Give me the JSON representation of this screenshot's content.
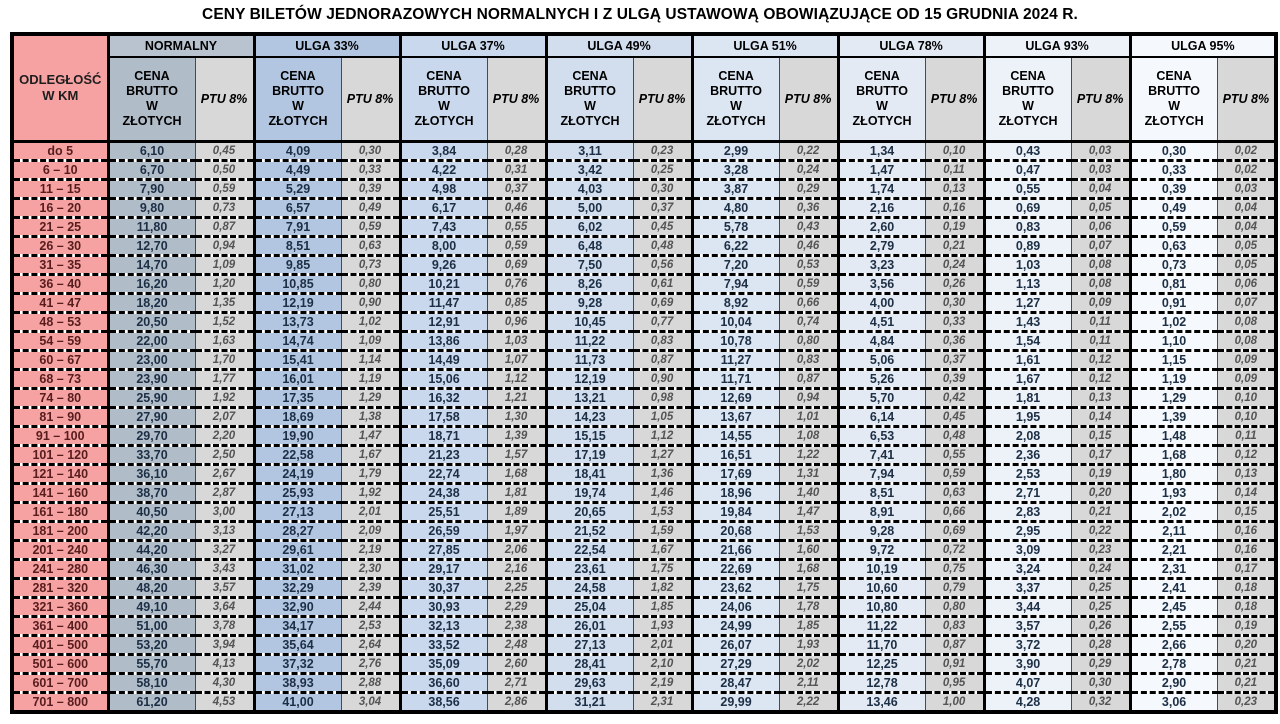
{
  "title": "CENY BILETÓW JEDNORAZOWYCH NORMALNYCH I Z ULGĄ USTAWOWĄ OBOWIĄZUJĄCE OD 15 GRUDNIA 2024 R.",
  "colors": {
    "distance_bg": "#f6a2a2",
    "ptu_bg": "#d8d8d8",
    "border": "#000000",
    "price_text": "#1c2f45",
    "ptu_text": "#545454",
    "distance_text": "#571c1c"
  },
  "table": {
    "distance_header": "ODLEGŁOŚĆ\nW KM",
    "price_header": "CENA\nBRUTTO\nW\nZŁOTYCH",
    "ptu_header": "PTU 8%",
    "groups": [
      {
        "id": "normalny",
        "label": "NORMALNY",
        "color": "#b1bcc9",
        "header_color": "#b9c3cf"
      },
      {
        "id": "ulga-33",
        "label": "ULGA 33%",
        "color": "#b2c6e2",
        "header_color": "#b2c6e2"
      },
      {
        "id": "ulga-37",
        "label": "ULGA 37%",
        "color": "#c9d8ec",
        "header_color": "#c9d8ec"
      },
      {
        "id": "ulga-49",
        "label": "ULGA 49%",
        "color": "#d2deee",
        "header_color": "#d2deee"
      },
      {
        "id": "ulga-51",
        "label": "ULGA 51%",
        "color": "#dce5f2",
        "header_color": "#dce5f2"
      },
      {
        "id": "ulga-78",
        "label": "ULGA 78%",
        "color": "#e4eaf4",
        "header_color": "#e4eaf4"
      },
      {
        "id": "ulga-93",
        "label": "ULGA 93%",
        "color": "#edf1f8",
        "header_color": "#edf1f8"
      },
      {
        "id": "ulga-95",
        "label": "ULGA 95%",
        "color": "#f5f8fc",
        "header_color": "#f5f8fc"
      }
    ],
    "rows": [
      {
        "km": "do 5",
        "values": [
          "6,10",
          "0,45",
          "4,09",
          "0,30",
          "3,84",
          "0,28",
          "3,11",
          "0,23",
          "2,99",
          "0,22",
          "1,34",
          "0,10",
          "0,43",
          "0,03",
          "0,30",
          "0,02"
        ]
      },
      {
        "km": "6 – 10",
        "values": [
          "6,70",
          "0,50",
          "4,49",
          "0,33",
          "4,22",
          "0,31",
          "3,42",
          "0,25",
          "3,28",
          "0,24",
          "1,47",
          "0,11",
          "0,47",
          "0,03",
          "0,33",
          "0,02"
        ]
      },
      {
        "km": "11 – 15",
        "values": [
          "7,90",
          "0,59",
          "5,29",
          "0,39",
          "4,98",
          "0,37",
          "4,03",
          "0,30",
          "3,87",
          "0,29",
          "1,74",
          "0,13",
          "0,55",
          "0,04",
          "0,39",
          "0,03"
        ]
      },
      {
        "km": "16 – 20",
        "values": [
          "9,80",
          "0,73",
          "6,57",
          "0,49",
          "6,17",
          "0,46",
          "5,00",
          "0,37",
          "4,80",
          "0,36",
          "2,16",
          "0,16",
          "0,69",
          "0,05",
          "0,49",
          "0,04"
        ]
      },
      {
        "km": "21 – 25",
        "values": [
          "11,80",
          "0,87",
          "7,91",
          "0,59",
          "7,43",
          "0,55",
          "6,02",
          "0,45",
          "5,78",
          "0,43",
          "2,60",
          "0,19",
          "0,83",
          "0,06",
          "0,59",
          "0,04"
        ]
      },
      {
        "km": "26 – 30",
        "values": [
          "12,70",
          "0,94",
          "8,51",
          "0,63",
          "8,00",
          "0,59",
          "6,48",
          "0,48",
          "6,22",
          "0,46",
          "2,79",
          "0,21",
          "0,89",
          "0,07",
          "0,63",
          "0,05"
        ]
      },
      {
        "km": "31 – 35",
        "values": [
          "14,70",
          "1,09",
          "9,85",
          "0,73",
          "9,26",
          "0,69",
          "7,50",
          "0,56",
          "7,20",
          "0,53",
          "3,23",
          "0,24",
          "1,03",
          "0,08",
          "0,73",
          "0,05"
        ]
      },
      {
        "km": "36 – 40",
        "values": [
          "16,20",
          "1,20",
          "10,85",
          "0,80",
          "10,21",
          "0,76",
          "8,26",
          "0,61",
          "7,94",
          "0,59",
          "3,56",
          "0,26",
          "1,13",
          "0,08",
          "0,81",
          "0,06"
        ]
      },
      {
        "km": "41 – 47",
        "values": [
          "18,20",
          "1,35",
          "12,19",
          "0,90",
          "11,47",
          "0,85",
          "9,28",
          "0,69",
          "8,92",
          "0,66",
          "4,00",
          "0,30",
          "1,27",
          "0,09",
          "0,91",
          "0,07"
        ]
      },
      {
        "km": "48 – 53",
        "values": [
          "20,50",
          "1,52",
          "13,73",
          "1,02",
          "12,91",
          "0,96",
          "10,45",
          "0,77",
          "10,04",
          "0,74",
          "4,51",
          "0,33",
          "1,43",
          "0,11",
          "1,02",
          "0,08"
        ]
      },
      {
        "km": "54 – 59",
        "values": [
          "22,00",
          "1,63",
          "14,74",
          "1,09",
          "13,86",
          "1,03",
          "11,22",
          "0,83",
          "10,78",
          "0,80",
          "4,84",
          "0,36",
          "1,54",
          "0,11",
          "1,10",
          "0,08"
        ]
      },
      {
        "km": "60 – 67",
        "values": [
          "23,00",
          "1,70",
          "15,41",
          "1,14",
          "14,49",
          "1,07",
          "11,73",
          "0,87",
          "11,27",
          "0,83",
          "5,06",
          "0,37",
          "1,61",
          "0,12",
          "1,15",
          "0,09"
        ]
      },
      {
        "km": "68 – 73",
        "values": [
          "23,90",
          "1,77",
          "16,01",
          "1,19",
          "15,06",
          "1,12",
          "12,19",
          "0,90",
          "11,71",
          "0,87",
          "5,26",
          "0,39",
          "1,67",
          "0,12",
          "1,19",
          "0,09"
        ]
      },
      {
        "km": "74 – 80",
        "values": [
          "25,90",
          "1,92",
          "17,35",
          "1,29",
          "16,32",
          "1,21",
          "13,21",
          "0,98",
          "12,69",
          "0,94",
          "5,70",
          "0,42",
          "1,81",
          "0,13",
          "1,29",
          "0,10"
        ]
      },
      {
        "km": "81 – 90",
        "values": [
          "27,90",
          "2,07",
          "18,69",
          "1,38",
          "17,58",
          "1,30",
          "14,23",
          "1,05",
          "13,67",
          "1,01",
          "6,14",
          "0,45",
          "1,95",
          "0,14",
          "1,39",
          "0,10"
        ]
      },
      {
        "km": "91 – 100",
        "values": [
          "29,70",
          "2,20",
          "19,90",
          "1,47",
          "18,71",
          "1,39",
          "15,15",
          "1,12",
          "14,55",
          "1,08",
          "6,53",
          "0,48",
          "2,08",
          "0,15",
          "1,48",
          "0,11"
        ]
      },
      {
        "km": "101 – 120",
        "values": [
          "33,70",
          "2,50",
          "22,58",
          "1,67",
          "21,23",
          "1,57",
          "17,19",
          "1,27",
          "16,51",
          "1,22",
          "7,41",
          "0,55",
          "2,36",
          "0,17",
          "1,68",
          "0,12"
        ]
      },
      {
        "km": "121 – 140",
        "values": [
          "36,10",
          "2,67",
          "24,19",
          "1,79",
          "22,74",
          "1,68",
          "18,41",
          "1,36",
          "17,69",
          "1,31",
          "7,94",
          "0,59",
          "2,53",
          "0,19",
          "1,80",
          "0,13"
        ]
      },
      {
        "km": "141 – 160",
        "values": [
          "38,70",
          "2,87",
          "25,93",
          "1,92",
          "24,38",
          "1,81",
          "19,74",
          "1,46",
          "18,96",
          "1,40",
          "8,51",
          "0,63",
          "2,71",
          "0,20",
          "1,93",
          "0,14"
        ]
      },
      {
        "km": "161 – 180",
        "values": [
          "40,50",
          "3,00",
          "27,13",
          "2,01",
          "25,51",
          "1,89",
          "20,65",
          "1,53",
          "19,84",
          "1,47",
          "8,91",
          "0,66",
          "2,83",
          "0,21",
          "2,02",
          "0,15"
        ]
      },
      {
        "km": "181 – 200",
        "values": [
          "42,20",
          "3,13",
          "28,27",
          "2,09",
          "26,59",
          "1,97",
          "21,52",
          "1,59",
          "20,68",
          "1,53",
          "9,28",
          "0,69",
          "2,95",
          "0,22",
          "2,11",
          "0,16"
        ]
      },
      {
        "km": "201 – 240",
        "values": [
          "44,20",
          "3,27",
          "29,61",
          "2,19",
          "27,85",
          "2,06",
          "22,54",
          "1,67",
          "21,66",
          "1,60",
          "9,72",
          "0,72",
          "3,09",
          "0,23",
          "2,21",
          "0,16"
        ]
      },
      {
        "km": "241 – 280",
        "values": [
          "46,30",
          "3,43",
          "31,02",
          "2,30",
          "29,17",
          "2,16",
          "23,61",
          "1,75",
          "22,69",
          "1,68",
          "10,19",
          "0,75",
          "3,24",
          "0,24",
          "2,31",
          "0,17"
        ]
      },
      {
        "km": "281 – 320",
        "values": [
          "48,20",
          "3,57",
          "32,29",
          "2,39",
          "30,37",
          "2,25",
          "24,58",
          "1,82",
          "23,62",
          "1,75",
          "10,60",
          "0,79",
          "3,37",
          "0,25",
          "2,41",
          "0,18"
        ]
      },
      {
        "km": "321 – 360",
        "values": [
          "49,10",
          "3,64",
          "32,90",
          "2,44",
          "30,93",
          "2,29",
          "25,04",
          "1,85",
          "24,06",
          "1,78",
          "10,80",
          "0,80",
          "3,44",
          "0,25",
          "2,45",
          "0,18"
        ]
      },
      {
        "km": "361 – 400",
        "values": [
          "51,00",
          "3,78",
          "34,17",
          "2,53",
          "32,13",
          "2,38",
          "26,01",
          "1,93",
          "24,99",
          "1,85",
          "11,22",
          "0,83",
          "3,57",
          "0,26",
          "2,55",
          "0,19"
        ]
      },
      {
        "km": "401 – 500",
        "values": [
          "53,20",
          "3,94",
          "35,64",
          "2,64",
          "33,52",
          "2,48",
          "27,13",
          "2,01",
          "26,07",
          "1,93",
          "11,70",
          "0,87",
          "3,72",
          "0,28",
          "2,66",
          "0,20"
        ]
      },
      {
        "km": "501 – 600",
        "values": [
          "55,70",
          "4,13",
          "37,32",
          "2,76",
          "35,09",
          "2,60",
          "28,41",
          "2,10",
          "27,29",
          "2,02",
          "12,25",
          "0,91",
          "3,90",
          "0,29",
          "2,78",
          "0,21"
        ]
      },
      {
        "km": "601 – 700",
        "values": [
          "58,10",
          "4,30",
          "38,93",
          "2,88",
          "36,60",
          "2,71",
          "29,63",
          "2,19",
          "28,47",
          "2,11",
          "12,78",
          "0,95",
          "4,07",
          "0,30",
          "2,90",
          "0,21"
        ]
      },
      {
        "km": "701 – 800",
        "values": [
          "61,20",
          "4,53",
          "41,00",
          "3,04",
          "38,56",
          "2,86",
          "31,21",
          "2,31",
          "29,99",
          "2,22",
          "13,46",
          "1,00",
          "4,28",
          "0,32",
          "3,06",
          "0,23"
        ]
      }
    ]
  }
}
